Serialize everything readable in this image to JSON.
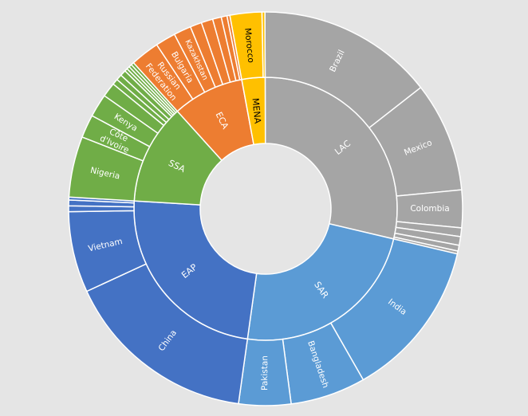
{
  "chart_data": {
    "type": "sunburst",
    "colors": {
      "LAC": "#a5a5a5",
      "SAR": "#5b9bd5",
      "EAP": "#4472c4",
      "SSA": "#70ad47",
      "ECA": "#ed7d31",
      "MENA": "#ffc000"
    },
    "regions": [
      {
        "name": "LAC",
        "children": [
          {
            "name": "Brazil",
            "value": 61
          },
          {
            "name": "Mexico",
            "value": 38
          },
          {
            "name": "Colombia",
            "value": 13
          },
          {
            "name": "",
            "value": 3
          },
          {
            "name": "",
            "value": 3
          },
          {
            "name": "",
            "value": 2
          },
          {
            "name": "",
            "value": 1
          }
        ]
      },
      {
        "name": "SAR",
        "children": [
          {
            "name": "India",
            "value": 55
          },
          {
            "name": "Bangladesh",
            "value": 26
          },
          {
            "name": "Pakistan",
            "value": 18
          }
        ]
      },
      {
        "name": "EAP",
        "children": [
          {
            "name": "China",
            "value": 67
          },
          {
            "name": "Vietnam",
            "value": 28
          },
          {
            "name": "",
            "value": 2
          },
          {
            "name": "",
            "value": 2
          },
          {
            "name": "",
            "value": 1
          }
        ]
      },
      {
        "name": "SSA",
        "children": [
          {
            "name": "Nigeria",
            "value": 21
          },
          {
            "name": "Côte d'Ivoire",
            "value": 8
          },
          {
            "name": "Kenya",
            "value": 8
          },
          {
            "name": "",
            "value": 5
          },
          {
            "name": "",
            "value": 2
          },
          {
            "name": "",
            "value": 2
          },
          {
            "name": "",
            "value": 2
          },
          {
            "name": "",
            "value": 1
          },
          {
            "name": "",
            "value": 1
          },
          {
            "name": "",
            "value": 1
          },
          {
            "name": "",
            "value": 1
          }
        ]
      },
      {
        "name": "ECA",
        "children": [
          {
            "name": "Russian Federation",
            "value": 10
          },
          {
            "name": "Bulgaria",
            "value": 7
          },
          {
            "name": "Kazakhstan",
            "value": 6
          },
          {
            "name": "",
            "value": 4
          },
          {
            "name": "",
            "value": 4
          },
          {
            "name": "",
            "value": 3
          },
          {
            "name": "",
            "value": 2
          },
          {
            "name": "",
            "value": 1
          }
        ]
      },
      {
        "name": "MENA",
        "children": [
          {
            "name": "Morocco",
            "value": 11
          },
          {
            "name": "",
            "value": 1
          }
        ]
      }
    ]
  }
}
